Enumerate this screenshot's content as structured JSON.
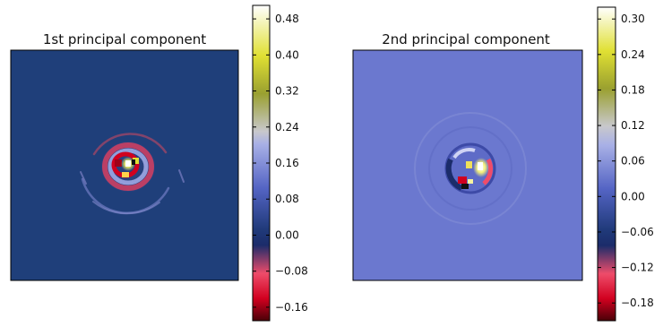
{
  "chart_data": [
    {
      "type": "heatmap",
      "title": "1st principal component",
      "colormap": "gist_stern-like (red → dark navy → light blue/lavender → yellow → white)",
      "background_color": "#1f3f7a",
      "color_range": [
        -0.19,
        0.51
      ],
      "colorbar_ticks": [
        "0.48",
        "0.40",
        "0.32",
        "0.24",
        "0.16",
        "0.08",
        "0.00",
        "−0.08",
        "−0.16"
      ],
      "pattern": "small concentric ring structure at center with a bright white/yellow core, red and light-blue rings, faint outer arcs"
    },
    {
      "type": "heatmap",
      "title": "2nd principal component",
      "colormap": "gist_stern-like (red → dark navy → light blue/lavender → yellow → white)",
      "background_color": "#6b78cf",
      "color_range": [
        -0.21,
        0.32
      ],
      "colorbar_ticks": [
        "0.30",
        "0.24",
        "0.18",
        "0.12",
        "0.06",
        "0.00",
        "−0.06",
        "−0.12",
        "−0.18"
      ],
      "pattern": "ring at center with white/yellow lobe on the right and dark/red lobes on the left, faint concentric ripples"
    }
  ]
}
